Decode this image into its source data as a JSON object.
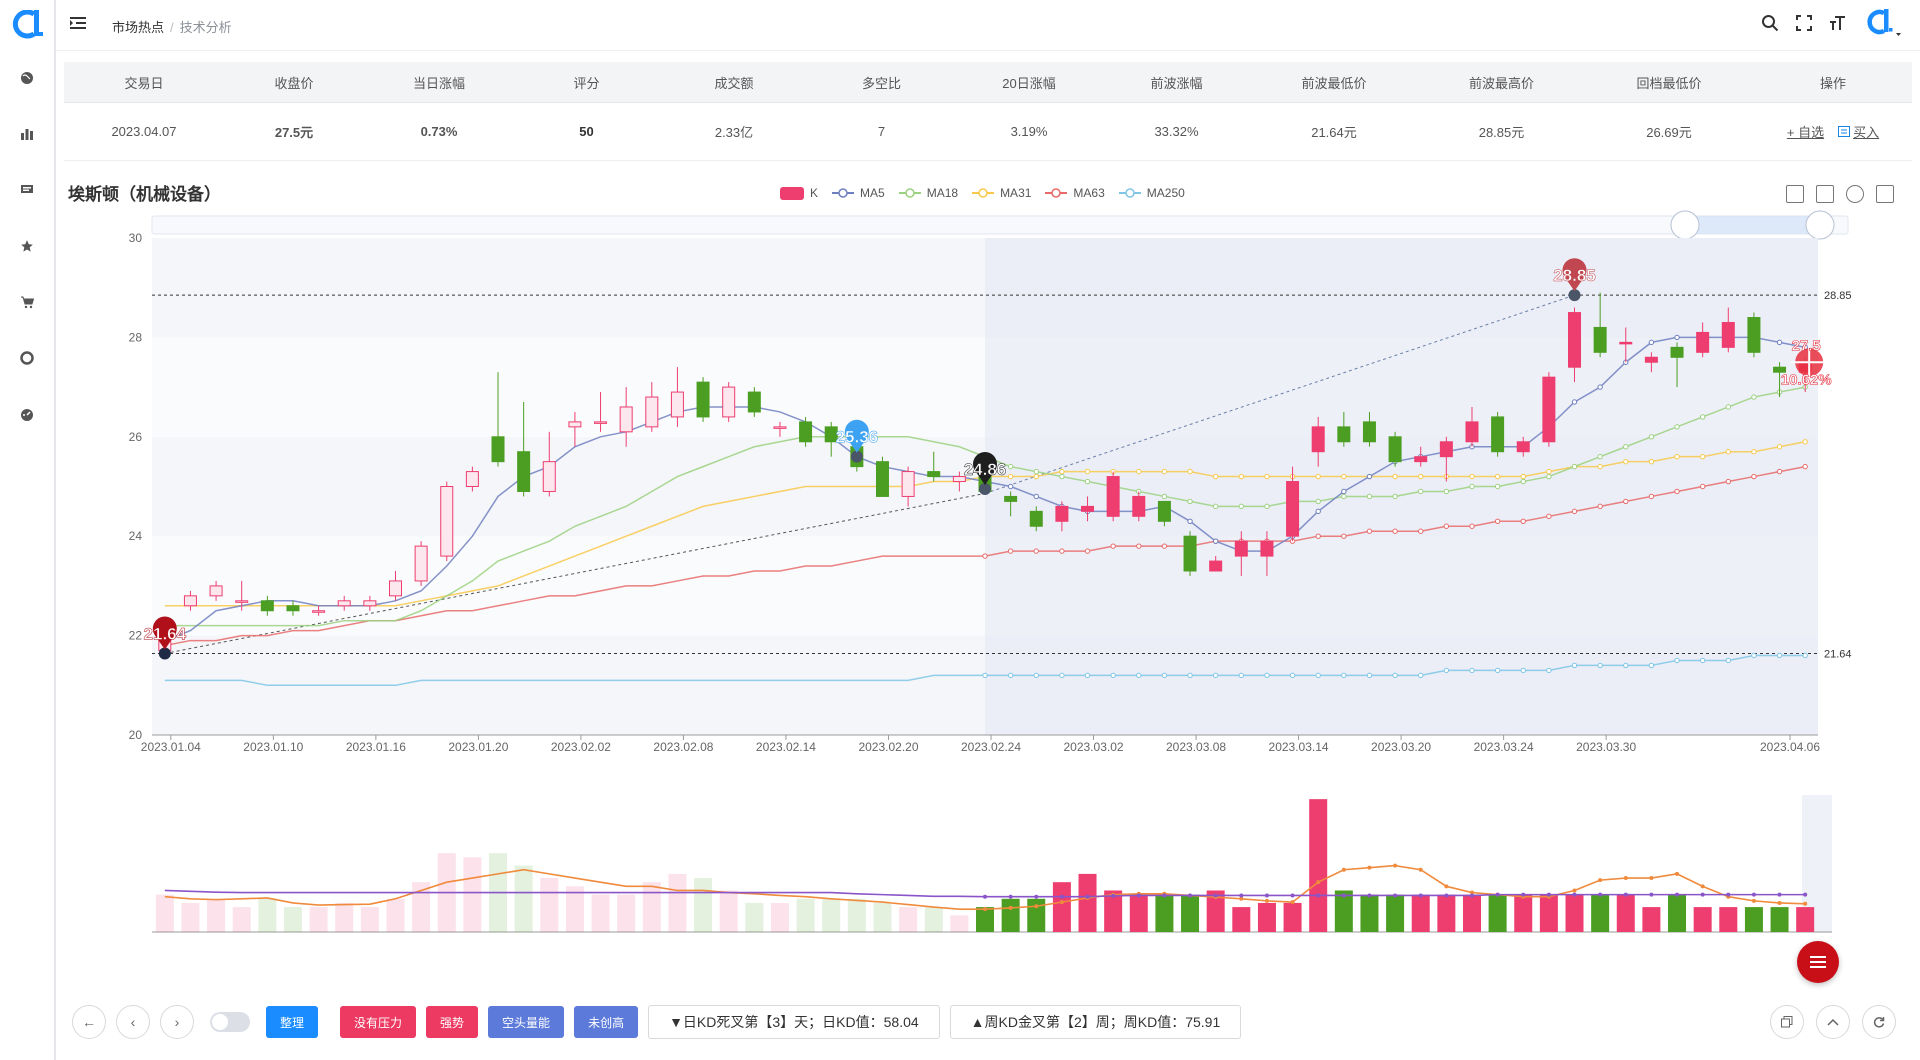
{
  "breadcrumb": {
    "parent": "市场热点",
    "separator": "/",
    "current": "技术分析"
  },
  "table": {
    "headers": [
      "交易日",
      "收盘价",
      "当日涨幅",
      "评分",
      "成交额",
      "多空比",
      "20日涨幅",
      "前波涨幅",
      "前波最低价",
      "前波最高价",
      "回档最低价",
      "操作"
    ],
    "row": {
      "date": "2023.04.07",
      "close": "27.5元",
      "change": "0.73%",
      "score": "50",
      "turnover": "2.33亿",
      "ratio": "7",
      "change20": "3.19%",
      "wave_change": "33.32%",
      "wave_low": "21.64元",
      "wave_high": "28.85元",
      "pullback_low": "26.69元"
    },
    "ops": {
      "watch": "+ 自选",
      "buy": "买入"
    }
  },
  "stock_title": "埃斯顿（机械设备）",
  "legend": [
    {
      "label": "K",
      "color": "#ee3d6f"
    },
    {
      "label": "MA5",
      "color": "#6e7fbf"
    },
    {
      "label": "MA18",
      "color": "#9bd17f"
    },
    {
      "label": "MA31",
      "color": "#f7c84a"
    },
    {
      "label": "MA63",
      "color": "#e86a6a"
    },
    {
      "label": "MA250",
      "color": "#7ec5e6"
    }
  ],
  "colors": {
    "up": "#ee3d6f",
    "down": "#4b9e22",
    "accent": "#1386e8"
  },
  "chart_data": {
    "type": "candlestick",
    "ylim": [
      20,
      30
    ],
    "y_ticks": [
      "30",
      "28",
      "26",
      "24",
      "22",
      "20"
    ],
    "x_ticks": [
      "2023.01.04",
      "2023.01.10",
      "2023.01.16",
      "2023.01.20",
      "2023.02.02",
      "2023.02.08",
      "2023.02.14",
      "2023.02.20",
      "2023.02.24",
      "2023.03.02",
      "2023.03.08",
      "2023.03.14",
      "2023.03.20",
      "2023.03.24",
      "2023.03.30",
      "2023.04.06"
    ],
    "candles": [
      [
        21.7,
        22.1,
        22.3,
        21.6
      ],
      [
        22.6,
        22.8,
        22.9,
        22.5
      ],
      [
        22.8,
        23.0,
        23.1,
        22.7
      ],
      [
        22.7,
        22.7,
        23.1,
        22.5
      ],
      [
        22.7,
        22.5,
        22.8,
        22.4
      ],
      [
        22.6,
        22.5,
        22.7,
        22.4
      ],
      [
        22.5,
        22.5,
        22.6,
        22.4
      ],
      [
        22.6,
        22.7,
        22.8,
        22.5
      ],
      [
        22.6,
        22.7,
        22.8,
        22.5
      ],
      [
        22.8,
        23.1,
        23.3,
        22.7
      ],
      [
        23.1,
        23.8,
        23.9,
        23.0
      ],
      [
        23.6,
        25.0,
        25.1,
        23.5
      ],
      [
        25.0,
        25.3,
        25.4,
        24.9
      ],
      [
        26.0,
        25.5,
        27.3,
        25.4
      ],
      [
        25.7,
        24.9,
        26.7,
        24.8
      ],
      [
        24.9,
        25.5,
        26.1,
        24.8
      ],
      [
        26.2,
        26.3,
        26.5,
        25.8
      ],
      [
        26.3,
        26.3,
        26.9,
        26.1
      ],
      [
        26.1,
        26.6,
        27.0,
        25.8
      ],
      [
        26.2,
        26.8,
        27.1,
        26.1
      ],
      [
        26.4,
        26.9,
        27.4,
        26.2
      ],
      [
        27.1,
        26.4,
        27.2,
        26.3
      ],
      [
        26.4,
        27.0,
        27.1,
        26.3
      ],
      [
        26.9,
        26.5,
        27.0,
        26.4
      ],
      [
        26.2,
        26.2,
        26.3,
        26.0
      ],
      [
        26.3,
        25.9,
        26.4,
        25.8
      ],
      [
        26.2,
        25.9,
        26.3,
        25.6
      ],
      [
        25.8,
        25.4,
        26.1,
        25.3
      ],
      [
        25.5,
        24.8,
        25.6,
        24.8
      ],
      [
        24.8,
        25.3,
        25.4,
        24.6
      ],
      [
        25.3,
        25.2,
        25.7,
        25.1
      ],
      [
        25.1,
        25.2,
        25.3,
        24.9
      ],
      [
        25.2,
        24.9,
        25.3,
        24.9
      ],
      [
        24.8,
        24.7,
        24.9,
        24.4
      ],
      [
        24.5,
        24.2,
        24.6,
        24.1
      ],
      [
        24.3,
        24.6,
        24.7,
        24.1
      ],
      [
        24.5,
        24.6,
        24.8,
        24.3
      ],
      [
        24.4,
        25.2,
        25.3,
        24.3
      ],
      [
        24.4,
        24.8,
        24.9,
        24.3
      ],
      [
        24.7,
        24.3,
        24.7,
        24.2
      ],
      [
        24.0,
        23.3,
        24.1,
        23.2
      ],
      [
        23.3,
        23.5,
        23.6,
        23.3
      ],
      [
        23.6,
        23.9,
        24.1,
        23.2
      ],
      [
        23.6,
        23.9,
        24.1,
        23.2
      ],
      [
        24.0,
        25.1,
        25.4,
        23.9
      ],
      [
        25.7,
        26.2,
        26.4,
        25.4
      ],
      [
        26.2,
        25.9,
        26.5,
        25.8
      ],
      [
        26.3,
        25.9,
        26.5,
        25.8
      ],
      [
        26.0,
        25.5,
        26.1,
        25.4
      ],
      [
        25.5,
        25.6,
        25.8,
        25.4
      ],
      [
        25.6,
        25.9,
        26.0,
        25.1
      ],
      [
        25.9,
        26.3,
        26.6,
        25.8
      ],
      [
        26.4,
        25.7,
        26.5,
        25.6
      ],
      [
        25.7,
        25.9,
        26.0,
        25.6
      ],
      [
        25.9,
        27.2,
        27.3,
        25.8
      ],
      [
        27.4,
        28.5,
        28.6,
        27.1
      ],
      [
        28.2,
        27.7,
        28.9,
        27.6
      ],
      [
        27.9,
        27.9,
        28.2,
        27.5
      ],
      [
        27.5,
        27.6,
        27.7,
        27.3
      ],
      [
        27.8,
        27.6,
        27.9,
        27.0
      ],
      [
        27.7,
        28.1,
        28.3,
        27.6
      ],
      [
        27.8,
        28.3,
        28.6,
        27.7
      ],
      [
        28.4,
        27.7,
        28.5,
        27.6
      ],
      [
        27.4,
        27.3,
        27.5,
        26.8
      ],
      [
        27.3,
        27.5,
        27.6,
        26.9
      ]
    ],
    "ma5": [
      21.9,
      22.1,
      22.5,
      22.6,
      22.7,
      22.7,
      22.6,
      22.6,
      22.6,
      22.7,
      22.9,
      23.4,
      24.0,
      24.8,
      25.2,
      25.4,
      25.8,
      26.0,
      26.1,
      26.3,
      26.5,
      26.6,
      26.6,
      26.6,
      26.5,
      26.3,
      26.0,
      25.6,
      25.4,
      25.3,
      25.2,
      25.2,
      25.1,
      25.0,
      24.8,
      24.6,
      24.5,
      24.5,
      24.5,
      24.6,
      24.3,
      23.9,
      23.7,
      23.7,
      24.0,
      24.5,
      24.9,
      25.2,
      25.5,
      25.6,
      25.7,
      25.8,
      25.8,
      25.8,
      26.2,
      26.7,
      27.0,
      27.5,
      27.9,
      28.0,
      28.0,
      28.0,
      28.0,
      27.9,
      27.8
    ],
    "ma18": [
      22.2,
      22.2,
      22.2,
      22.2,
      22.2,
      22.2,
      22.2,
      22.3,
      22.3,
      22.3,
      22.5,
      22.8,
      23.1,
      23.5,
      23.7,
      23.9,
      24.2,
      24.4,
      24.6,
      24.9,
      25.2,
      25.4,
      25.6,
      25.8,
      25.9,
      26.0,
      26.0,
      26.0,
      26.0,
      26.0,
      25.9,
      25.8,
      25.6,
      25.4,
      25.3,
      25.2,
      25.1,
      25.0,
      24.9,
      24.8,
      24.7,
      24.6,
      24.6,
      24.6,
      24.7,
      24.7,
      24.8,
      24.8,
      24.8,
      24.9,
      24.9,
      25.0,
      25.0,
      25.1,
      25.2,
      25.4,
      25.6,
      25.8,
      26.0,
      26.2,
      26.4,
      26.6,
      26.8,
      26.9,
      27.0
    ],
    "ma31": [
      22.6,
      22.6,
      22.6,
      22.6,
      22.6,
      22.6,
      22.6,
      22.6,
      22.6,
      22.6,
      22.7,
      22.8,
      22.9,
      23.0,
      23.2,
      23.4,
      23.6,
      23.8,
      24.0,
      24.2,
      24.4,
      24.6,
      24.7,
      24.8,
      24.9,
      25.0,
      25.0,
      25.0,
      25.0,
      25.0,
      25.1,
      25.1,
      25.2,
      25.2,
      25.2,
      25.3,
      25.3,
      25.3,
      25.3,
      25.3,
      25.3,
      25.2,
      25.2,
      25.2,
      25.2,
      25.2,
      25.2,
      25.2,
      25.2,
      25.2,
      25.2,
      25.2,
      25.2,
      25.2,
      25.3,
      25.4,
      25.4,
      25.5,
      25.5,
      25.6,
      25.6,
      25.7,
      25.7,
      25.8,
      25.9
    ],
    "ma63": [
      21.8,
      21.9,
      21.9,
      22.0,
      22.0,
      22.1,
      22.1,
      22.2,
      22.3,
      22.3,
      22.4,
      22.5,
      22.5,
      22.6,
      22.7,
      22.8,
      22.8,
      22.9,
      23.0,
      23.0,
      23.1,
      23.2,
      23.2,
      23.3,
      23.3,
      23.4,
      23.4,
      23.5,
      23.6,
      23.6,
      23.6,
      23.6,
      23.6,
      23.7,
      23.7,
      23.7,
      23.7,
      23.8,
      23.8,
      23.8,
      23.8,
      23.9,
      23.9,
      23.9,
      23.9,
      24.0,
      24.0,
      24.1,
      24.1,
      24.1,
      24.2,
      24.2,
      24.3,
      24.3,
      24.4,
      24.5,
      24.6,
      24.7,
      24.8,
      24.9,
      25.0,
      25.1,
      25.2,
      25.3,
      25.4
    ],
    "ma250": [
      21.1,
      21.1,
      21.1,
      21.1,
      21.0,
      21.0,
      21.0,
      21.0,
      21.0,
      21.0,
      21.1,
      21.1,
      21.1,
      21.1,
      21.1,
      21.1,
      21.1,
      21.1,
      21.1,
      21.1,
      21.1,
      21.1,
      21.1,
      21.1,
      21.1,
      21.1,
      21.1,
      21.1,
      21.1,
      21.1,
      21.2,
      21.2,
      21.2,
      21.2,
      21.2,
      21.2,
      21.2,
      21.2,
      21.2,
      21.2,
      21.2,
      21.2,
      21.2,
      21.2,
      21.2,
      21.2,
      21.2,
      21.2,
      21.2,
      21.2,
      21.3,
      21.3,
      21.3,
      21.3,
      21.3,
      21.4,
      21.4,
      21.4,
      21.4,
      21.5,
      21.5,
      21.5,
      21.6,
      21.6,
      21.6
    ],
    "volume": [
      0.9,
      0.7,
      0.8,
      0.6,
      0.8,
      0.6,
      0.6,
      0.7,
      0.6,
      0.8,
      1.2,
      1.9,
      1.8,
      1.9,
      1.6,
      1.3,
      1.1,
      0.9,
      0.9,
      1.2,
      1.4,
      1.3,
      1.0,
      0.7,
      0.7,
      0.8,
      0.8,
      0.8,
      0.7,
      0.6,
      0.6,
      0.4,
      0.6,
      0.8,
      0.8,
      1.2,
      1.4,
      1.0,
      0.9,
      0.9,
      0.9,
      1.0,
      0.6,
      0.7,
      0.7,
      3.2,
      1.0,
      0.9,
      0.9,
      0.9,
      0.9,
      0.9,
      0.9,
      0.9,
      0.9,
      0.9,
      0.9,
      0.9,
      0.6,
      0.9,
      0.6,
      0.6,
      0.6,
      0.6,
      0.6
    ],
    "vol_ma_orange": [
      0.85,
      0.8,
      0.78,
      0.8,
      0.82,
      0.7,
      0.65,
      0.66,
      0.67,
      0.8,
      1.0,
      1.2,
      1.3,
      1.4,
      1.5,
      1.4,
      1.3,
      1.2,
      1.1,
      1.1,
      1.0,
      1.0,
      0.95,
      0.92,
      0.88,
      0.85,
      0.8,
      0.76,
      0.72,
      0.66,
      0.6,
      0.55,
      0.55,
      0.58,
      0.62,
      0.72,
      0.82,
      0.9,
      0.92,
      0.92,
      0.88,
      0.84,
      0.8,
      0.75,
      0.72,
      1.2,
      1.5,
      1.55,
      1.6,
      1.5,
      1.1,
      0.95,
      0.9,
      0.85,
      0.85,
      1.0,
      1.25,
      1.3,
      1.3,
      1.4,
      1.1,
      0.85,
      0.75,
      0.7,
      0.68
    ],
    "vol_ma_purple": [
      1.0,
      0.98,
      0.96,
      0.95,
      0.95,
      0.95,
      0.95,
      0.95,
      0.95,
      0.95,
      0.95,
      0.95,
      0.95,
      0.95,
      0.95,
      0.95,
      0.95,
      0.95,
      0.95,
      0.95,
      0.95,
      0.95,
      0.95,
      0.95,
      0.95,
      0.95,
      0.95,
      0.92,
      0.9,
      0.88,
      0.86,
      0.86,
      0.85,
      0.85,
      0.85,
      0.85,
      0.85,
      0.87,
      0.88,
      0.88,
      0.88,
      0.88,
      0.88,
      0.88,
      0.88,
      0.88,
      0.88,
      0.88,
      0.88,
      0.88,
      0.88,
      0.88,
      0.9,
      0.9,
      0.9,
      0.9,
      0.9,
      0.9,
      0.9,
      0.9,
      0.9,
      0.9,
      0.9,
      0.9,
      0.9
    ],
    "markers": {
      "wave_low": "21.64",
      "wave_high": "28.85",
      "mid_point_a": "25.36",
      "mid_point_b": "24.86",
      "last_price": "27.5",
      "last_pct": "10.62%",
      "right_high_label": "28.85",
      "right_low_label": "21.64"
    }
  },
  "bottom": {
    "tags": [
      {
        "label": "整理",
        "color": "#1a8cff"
      },
      {
        "label": "没有压力",
        "color": "#ec3a62"
      },
      {
        "label": "强势",
        "color": "#ec3a62"
      },
      {
        "label": "空头量能",
        "color": "#5c7ad9"
      },
      {
        "label": "未创高",
        "color": "#5c7ad9"
      }
    ],
    "daily_kd": "▼日KD死叉第【3】天；日KD值：58.04",
    "weekly_kd": "▲周KD金叉第【2】周；周KD值：75.91"
  }
}
